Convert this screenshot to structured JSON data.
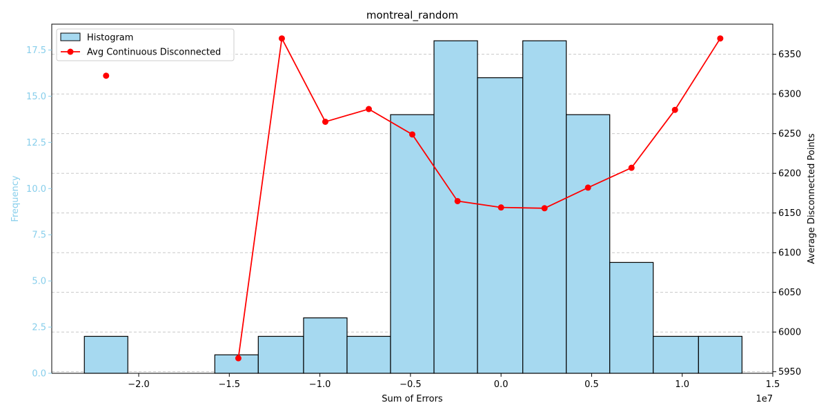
{
  "chart_data": {
    "type": "bar+line",
    "title": "montreal_random",
    "xlabel": "Sum of Errors",
    "xscale_label": "1e7",
    "y_left_label": "Frequency",
    "y_right_label": "Average Disconnected Points",
    "x_range": [
      -2.48,
      1.5
    ],
    "y_left_range": [
      0,
      18.9
    ],
    "y_right_range": [
      5948,
      6388
    ],
    "x_ticks": [
      {
        "value": -2.0,
        "label": "−2.0"
      },
      {
        "value": -1.5,
        "label": "−1.5"
      },
      {
        "value": -1.0,
        "label": "−1.0"
      },
      {
        "value": -0.5,
        "label": "−0.5"
      },
      {
        "value": 0.0,
        "label": "0.0"
      },
      {
        "value": 0.5,
        "label": "0.5"
      },
      {
        "value": 1.0,
        "label": "1.0"
      },
      {
        "value": 1.5,
        "label": "1.5"
      }
    ],
    "y_left_ticks": [
      {
        "value": 0.0,
        "label": "0.0"
      },
      {
        "value": 2.5,
        "label": "2.5"
      },
      {
        "value": 5.0,
        "label": "5.0"
      },
      {
        "value": 7.5,
        "label": "7.5"
      },
      {
        "value": 10.0,
        "label": "10.0"
      },
      {
        "value": 12.5,
        "label": "12.5"
      },
      {
        "value": 15.0,
        "label": "15.0"
      },
      {
        "value": 17.5,
        "label": "17.5"
      }
    ],
    "y_right_ticks": [
      {
        "value": 5950,
        "label": "5950"
      },
      {
        "value": 6000,
        "label": "6000"
      },
      {
        "value": 6050,
        "label": "6050"
      },
      {
        "value": 6100,
        "label": "6100"
      },
      {
        "value": 6150,
        "label": "6150"
      },
      {
        "value": 6200,
        "label": "6200"
      },
      {
        "value": 6250,
        "label": "6250"
      },
      {
        "value": 6300,
        "label": "6300"
      },
      {
        "value": 6350,
        "label": "6350"
      }
    ],
    "grid": "horizontal dashed (right axis)",
    "legend_position": "top-left",
    "histogram": {
      "name": "Histogram",
      "color": "#a6d9f0",
      "edge_color": "#000000",
      "bins": [
        {
          "x0": -2.3,
          "x1": -2.06,
          "count": 2
        },
        {
          "x0": -2.06,
          "x1": -1.82,
          "count": 0
        },
        {
          "x0": -1.82,
          "x1": -1.58,
          "count": 0
        },
        {
          "x0": -1.58,
          "x1": -1.34,
          "count": 1
        },
        {
          "x0": -1.34,
          "x1": -1.09,
          "count": 2
        },
        {
          "x0": -1.09,
          "x1": -0.85,
          "count": 3
        },
        {
          "x0": -0.85,
          "x1": -0.61,
          "count": 2
        },
        {
          "x0": -0.61,
          "x1": -0.37,
          "count": 14
        },
        {
          "x0": -0.37,
          "x1": -0.13,
          "count": 18
        },
        {
          "x0": -0.13,
          "x1": 0.12,
          "count": 16
        },
        {
          "x0": 0.12,
          "x1": 0.36,
          "count": 18
        },
        {
          "x0": 0.36,
          "x1": 0.6,
          "count": 14
        },
        {
          "x0": 0.6,
          "x1": 0.84,
          "count": 6
        },
        {
          "x0": 0.84,
          "x1": 1.09,
          "count": 2
        },
        {
          "x0": 1.09,
          "x1": 1.33,
          "count": 2
        }
      ]
    },
    "line_series": {
      "name": "Avg Continuous Disconnected",
      "color": "#ff0000",
      "segments": [
        [
          {
            "x": -2.18,
            "y": 6323
          }
        ],
        [
          {
            "x": -1.45,
            "y": 5967
          },
          {
            "x": -1.21,
            "y": 6370
          },
          {
            "x": -0.97,
            "y": 6265
          },
          {
            "x": -0.73,
            "y": 6281
          },
          {
            "x": -0.49,
            "y": 6249
          },
          {
            "x": -0.24,
            "y": 6165
          },
          {
            "x": 0.0,
            "y": 6157
          },
          {
            "x": 0.24,
            "y": 6156
          },
          {
            "x": 0.48,
            "y": 6182
          },
          {
            "x": 0.72,
            "y": 6207
          },
          {
            "x": 0.96,
            "y": 6280
          },
          {
            "x": 1.21,
            "y": 6370
          }
        ]
      ]
    },
    "colors": {
      "left_axis": "#87ceeb",
      "bar_fill": "#a6d9f0",
      "line": "#ff0000",
      "grid": "#b0b0b0"
    }
  }
}
